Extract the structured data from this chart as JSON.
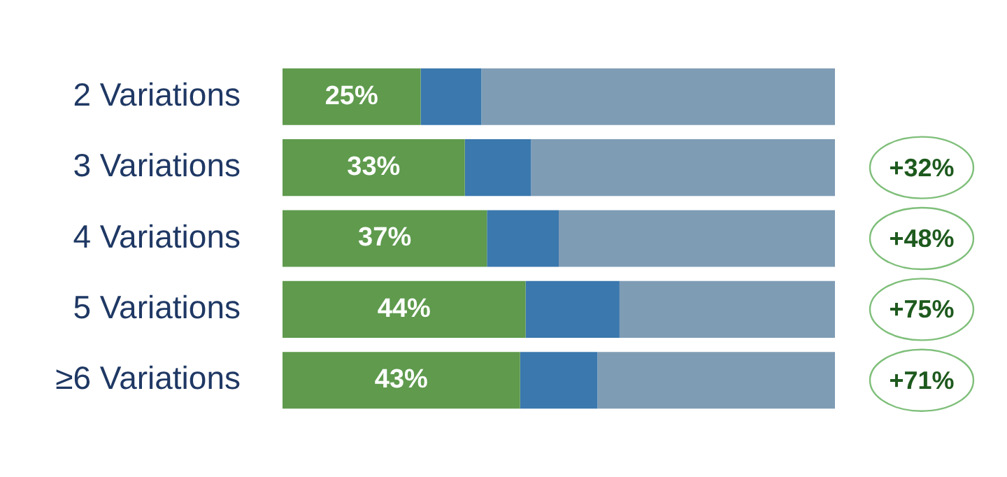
{
  "chart_data": {
    "type": "bar",
    "orientation": "horizontal",
    "stacked": true,
    "tick_labels": "y",
    "categories": [
      "2 Variations",
      "3 Variations",
      "4 Variations",
      "5 Variations",
      "≥6 Variations"
    ],
    "series": [
      {
        "color": "#5f9a4d",
        "values": [
          25,
          33,
          37,
          44,
          43
        ],
        "value_labels": [
          "25%",
          "33%",
          "37%",
          "44%",
          "43%"
        ]
      },
      {
        "color": "#3a78ad",
        "values": [
          11,
          12,
          13,
          17,
          14
        ]
      },
      {
        "color": "#7f9cb5",
        "values": [
          64,
          55,
          50,
          39,
          43
        ]
      }
    ],
    "annotations": [
      "+32%",
      "+48%",
      "+75%",
      "+71%"
    ],
    "legend": false
  }
}
